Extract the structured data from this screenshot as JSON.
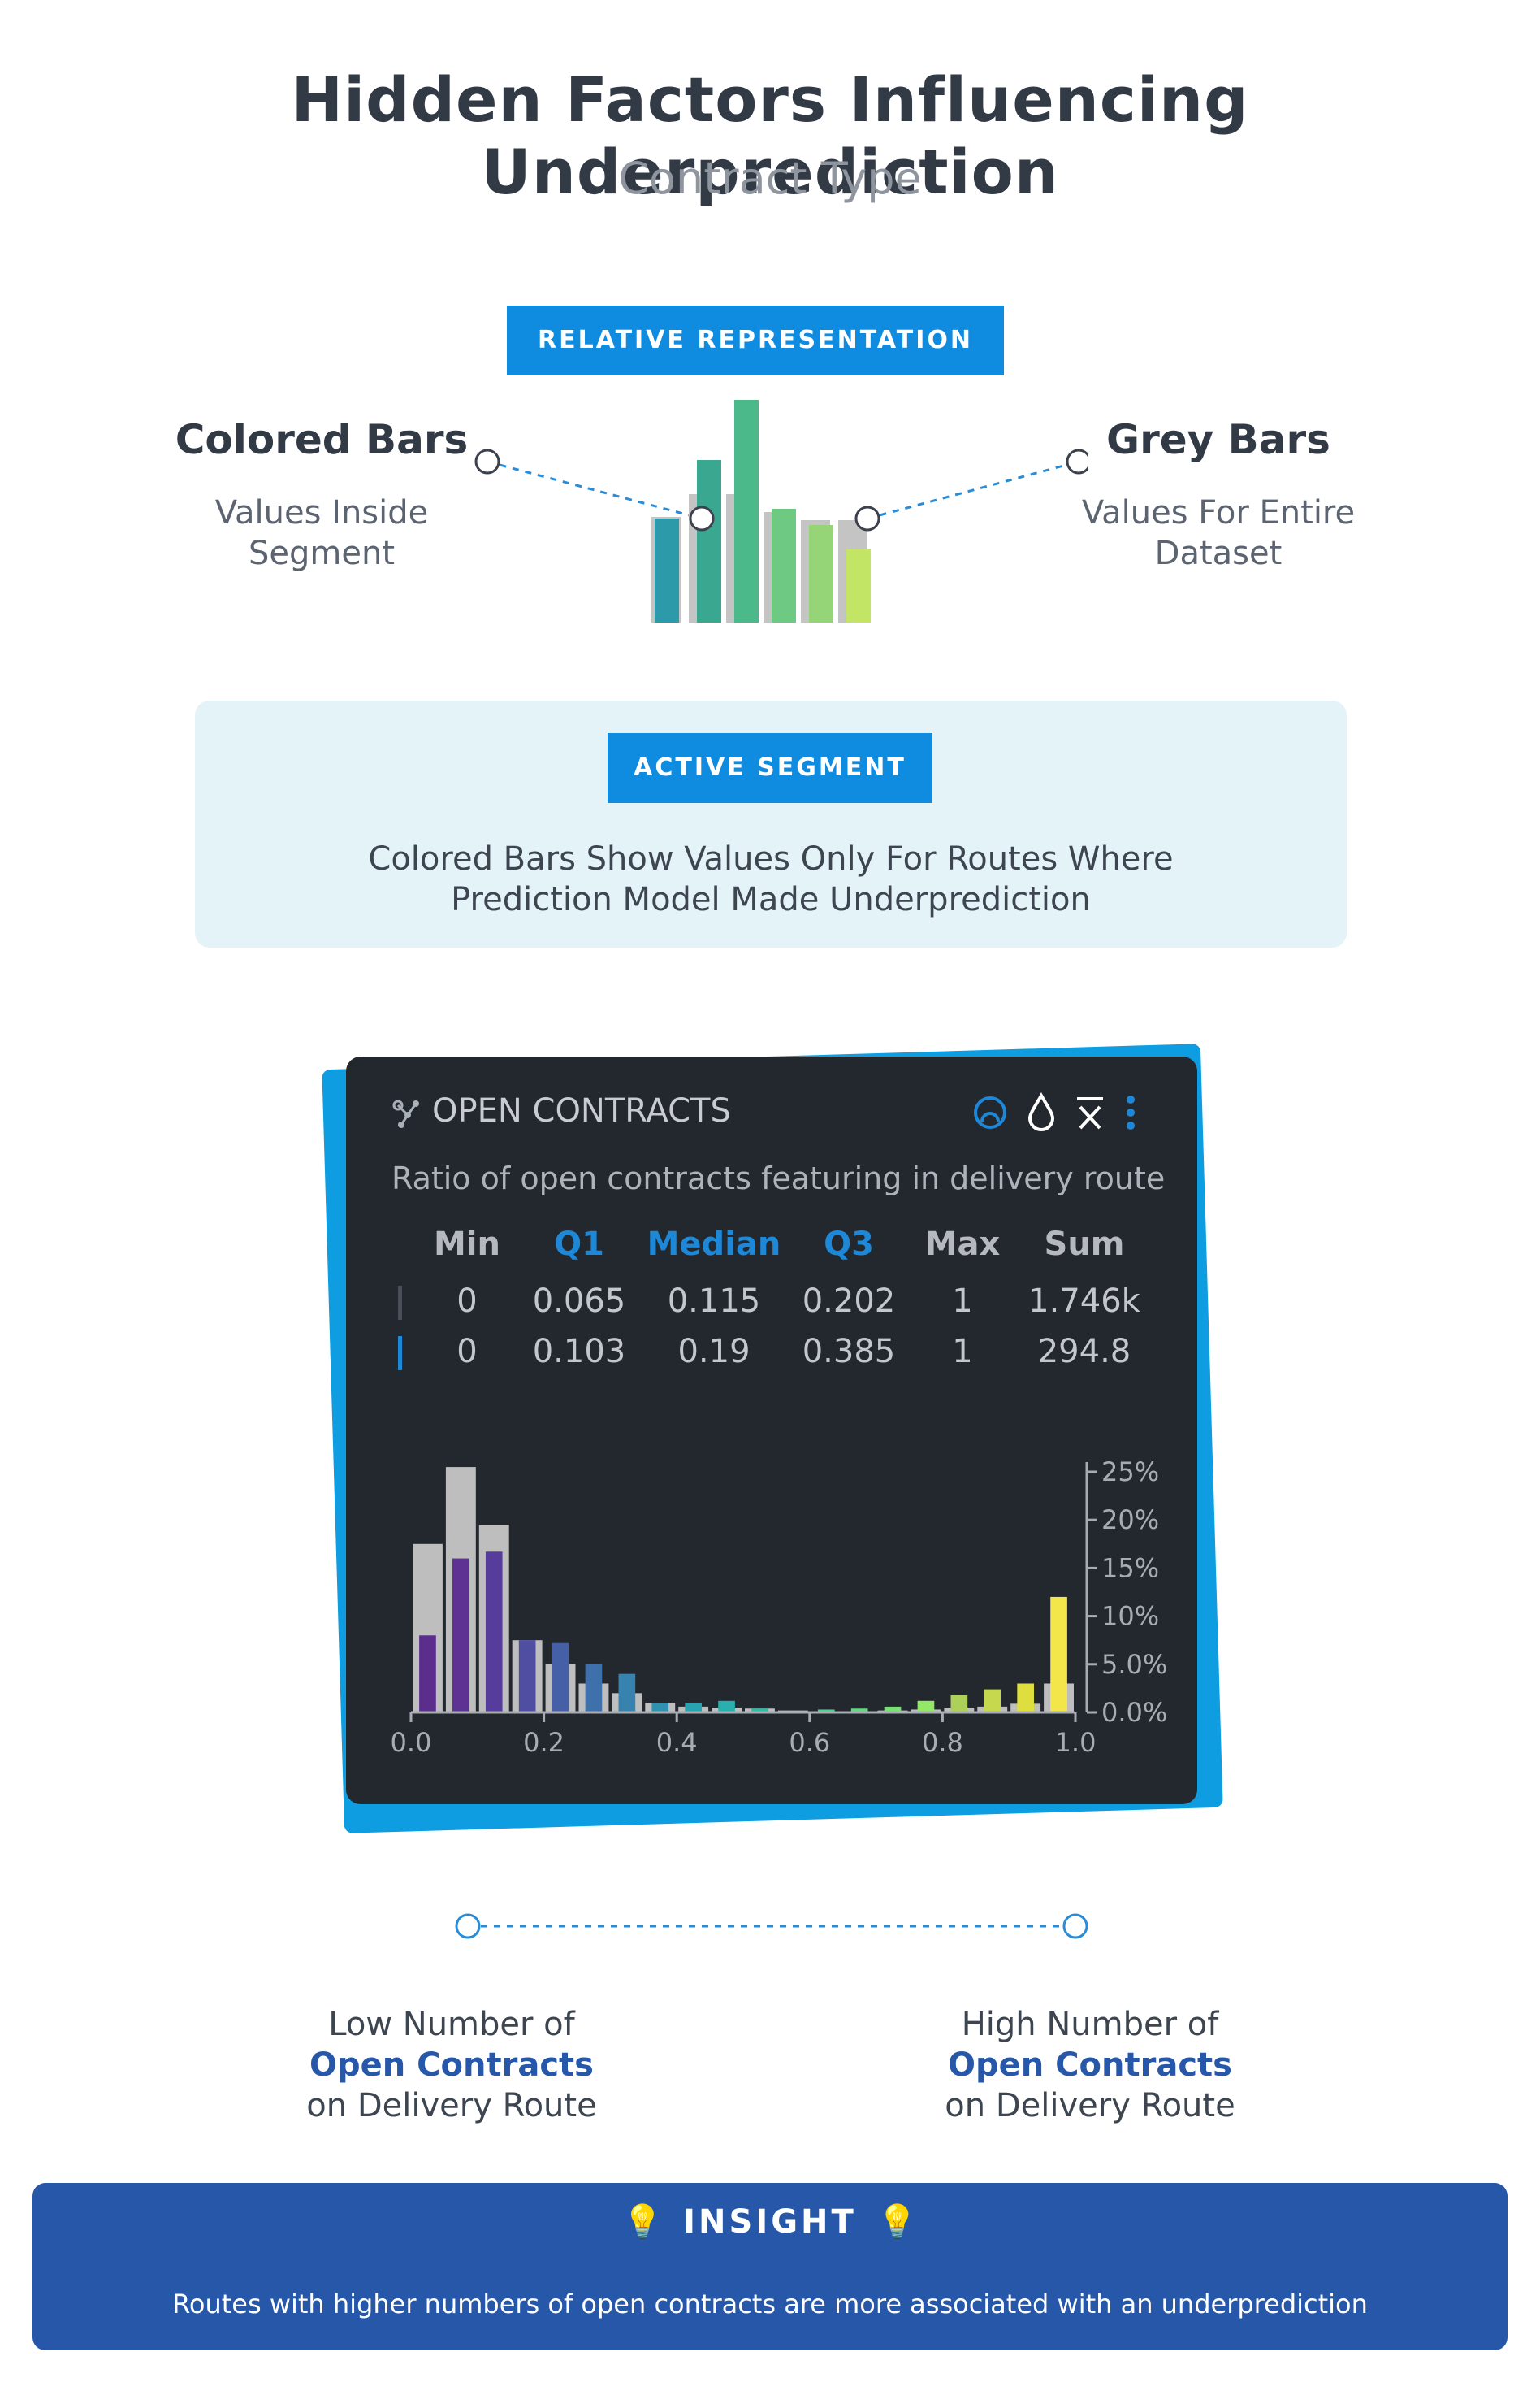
{
  "header": {
    "title": "Hidden Factors Influencing Underprediction",
    "subtitle": "Contract Type"
  },
  "legend": {
    "badge": "RELATIVE REPRESENTATION",
    "colored_title": "Colored Bars",
    "colored_desc_1": "Values Inside",
    "colored_desc_2": "Segment",
    "grey_title": "Grey Bars",
    "grey_desc_1": "Values For Entire",
    "grey_desc_2": "Dataset"
  },
  "active_segment": {
    "badge": "ACTIVE SEGMENT",
    "desc_1": "Colored Bars Show Values Only For Routes Where",
    "desc_2": "Prediction Model Made Underprediction"
  },
  "card": {
    "title": "OPEN CONTRACTS",
    "description": "Ratio of open contracts featuring in delivery route",
    "icons": [
      "segment-circle-icon",
      "drop-icon",
      "x-bar-icon",
      "more-vertical-icon"
    ],
    "stats": {
      "headers": [
        "Min",
        "Q1",
        "Median",
        "Q3",
        "Max",
        "Sum"
      ],
      "header_colors": [
        "#b5b9bf",
        "#1e88d8",
        "#1e88d8",
        "#1e88d8",
        "#b5b9bf",
        "#b5b9bf"
      ],
      "rows": [
        {
          "marker_color": "#4a4f57",
          "values": [
            "0",
            "0.065",
            "0.115",
            "0.202",
            "1",
            "1.746k"
          ]
        },
        {
          "marker_color": "#1e88d8",
          "values": [
            "0",
            "0.103",
            "0.19",
            "0.385",
            "1",
            "294.8"
          ]
        }
      ]
    }
  },
  "chart_data": {
    "type": "bar",
    "title": "",
    "xlabel": "",
    "ylabel": "",
    "x_ticks": [
      "0.0",
      "0.2",
      "0.4",
      "0.6",
      "0.8",
      "1.0"
    ],
    "y_ticks": [
      "0.0%",
      "5.0%",
      "10%",
      "15%",
      "20%",
      "25%"
    ],
    "xlim": [
      0,
      1.0
    ],
    "ylim": [
      0,
      25
    ],
    "bin_width": 0.05,
    "bin_starts": [
      0.0,
      0.05,
      0.1,
      0.15,
      0.2,
      0.25,
      0.3,
      0.35,
      0.4,
      0.45,
      0.5,
      0.55,
      0.6,
      0.65,
      0.7,
      0.75,
      0.8,
      0.85,
      0.9,
      0.95
    ],
    "series": [
      {
        "name": "Entire dataset",
        "color": "#bebebe",
        "values": [
          17.5,
          25.5,
          19.5,
          7.5,
          5.0,
          3.0,
          2.0,
          1.0,
          0.6,
          0.5,
          0.4,
          0.2,
          0.1,
          0.1,
          0.2,
          0.3,
          0.5,
          0.6,
          0.9,
          3.0
        ]
      },
      {
        "name": "Segment",
        "colors": [
          "#5b2d8c",
          "#5e3293",
          "#573d9b",
          "#4f4ea3",
          "#4660a8",
          "#3e71ac",
          "#3782af",
          "#2f92b1",
          "#29a2b2",
          "#27b0ad",
          "#2fbca5",
          "#3dc79a",
          "#4ed18e",
          "#62d981",
          "#79e174",
          "#93e866",
          "#add059",
          "#c6d84d",
          "#dedf3f",
          "#f2e64a"
        ],
        "values": [
          8.0,
          16.0,
          16.7,
          7.5,
          7.2,
          5.0,
          4.0,
          1.0,
          1.0,
          1.2,
          0.4,
          0.1,
          0.3,
          0.4,
          0.6,
          1.2,
          1.8,
          2.4,
          3.0,
          12.0
        ]
      }
    ],
    "grid": false
  },
  "scale": {
    "low_1": "Low Number of",
    "low_2": "Open Contracts",
    "low_3": "on Delivery Route",
    "high_1": "High Number of",
    "high_2": "Open Contracts",
    "high_3": "on Delivery Route"
  },
  "insight": {
    "title": "INSIGHT",
    "text": "Routes with higher numbers of open contracts are more associated with an underprediction"
  }
}
